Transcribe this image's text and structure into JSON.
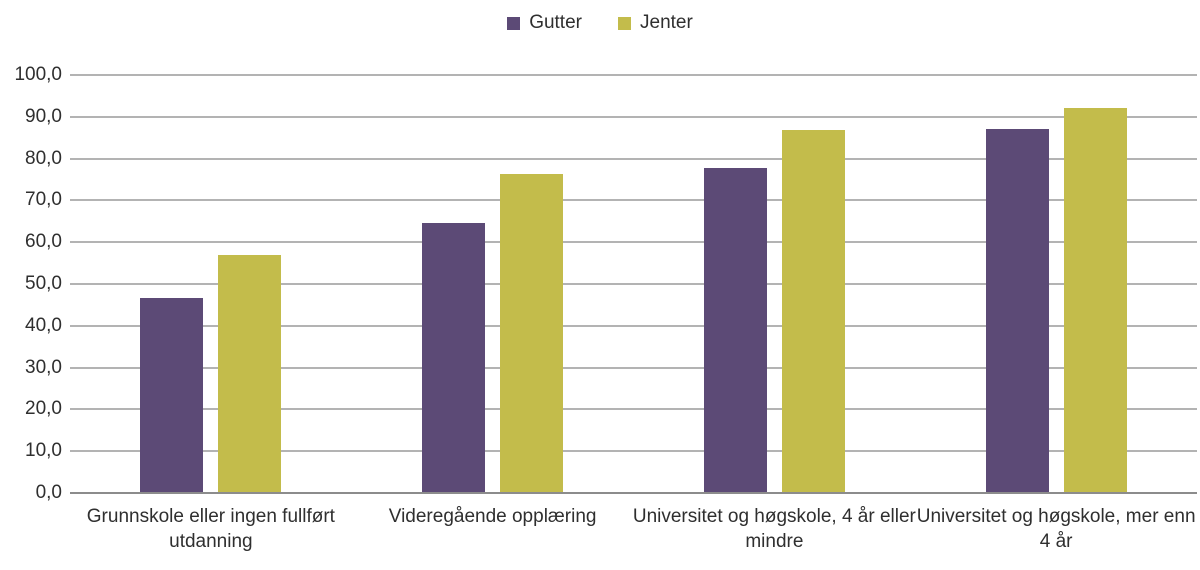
{
  "chart_data": {
    "type": "bar",
    "title": "",
    "xlabel": "",
    "ylabel": "",
    "categories": [
      "Grunnskole eller ingen fullført utdanning",
      "Videregående opplæring",
      "Universitet og høgskole, 4 år eller mindre",
      "Universitet og høgskole, mer enn 4 år"
    ],
    "series": [
      {
        "name": "Gutter",
        "color": "#5c4a76",
        "values": [
          46.7,
          64.6,
          77.7,
          87.1
        ]
      },
      {
        "name": "Jenter",
        "color": "#c3bc4b",
        "values": [
          56.9,
          76.4,
          86.9,
          92.0
        ]
      }
    ],
    "ylim": [
      0,
      100
    ],
    "ytick_step": 10,
    "ytick_labels": [
      "0,0",
      "10,0",
      "20,0",
      "30,0",
      "40,0",
      "50,0",
      "60,0",
      "70,0",
      "80,0",
      "90,0",
      "100,0"
    ],
    "grid": true,
    "legend_position": "top-center",
    "decimal_separator": ","
  },
  "colors": {
    "gridline": "#b3b3b3",
    "axis_line": "#8c8c8c",
    "text": "#2f2f2f",
    "background": "#ffffff"
  }
}
